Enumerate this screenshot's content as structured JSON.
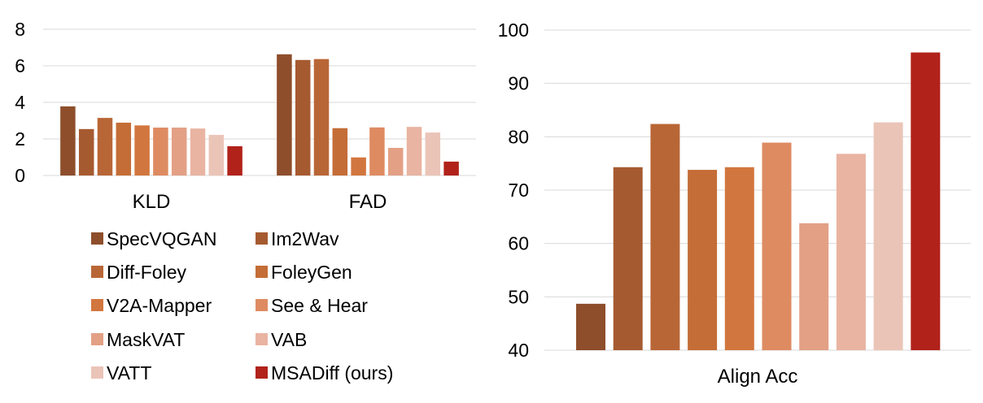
{
  "colors": [
    "#8e4e2b",
    "#a65a30",
    "#b96636",
    "#c46d37",
    "#d2763f",
    "#de8b62",
    "#e3a085",
    "#e9b4a2",
    "#ebc4b8",
    "#b1221a"
  ],
  "chart_data": [
    {
      "type": "bar",
      "categories": [
        "KLD",
        "FAD"
      ],
      "ylim": [
        0,
        8
      ],
      "yticks": [
        0,
        2,
        4,
        6,
        8
      ],
      "grid": true,
      "legend_position": "bottom",
      "series": [
        {
          "name": "SpecVQGAN",
          "values": [
            3.78,
            6.63
          ]
        },
        {
          "name": "Im2Wav",
          "values": [
            2.54,
            6.32
          ]
        },
        {
          "name": "Diff-Foley",
          "values": [
            3.15,
            6.37
          ]
        },
        {
          "name": "FoleyGen",
          "values": [
            2.89,
            2.59
          ]
        },
        {
          "name": "V2A-Mapper",
          "values": [
            2.74,
            0.99
          ]
        },
        {
          "name": "See & Hear",
          "values": [
            2.62,
            2.63
          ]
        },
        {
          "name": "MaskVAT",
          "values": [
            2.62,
            1.51
          ]
        },
        {
          "name": "VAB",
          "values": [
            2.57,
            2.66
          ]
        },
        {
          "name": "VATT",
          "values": [
            2.22,
            2.35
          ]
        },
        {
          "name": "MSADiff (ours)",
          "values": [
            1.6,
            0.76
          ]
        }
      ]
    },
    {
      "type": "bar",
      "categories": [
        "Align Acc"
      ],
      "ylim": [
        40,
        100
      ],
      "yticks": [
        40,
        50,
        60,
        70,
        80,
        90,
        100
      ],
      "grid": true,
      "series": [
        {
          "name": "SpecVQGAN",
          "values": [
            48.7
          ]
        },
        {
          "name": "Im2Wav",
          "values": [
            74.3
          ]
        },
        {
          "name": "Diff-Foley",
          "values": [
            82.4
          ]
        },
        {
          "name": "FoleyGen",
          "values": [
            73.8
          ]
        },
        {
          "name": "V2A-Mapper",
          "values": [
            74.3
          ]
        },
        {
          "name": "See & Hear",
          "values": [
            78.9
          ]
        },
        {
          "name": "MaskVAT",
          "values": [
            63.8
          ]
        },
        {
          "name": "VAB",
          "values": [
            76.8
          ]
        },
        {
          "name": "VATT",
          "values": [
            82.7
          ]
        },
        {
          "name": "MSADiff (ours)",
          "values": [
            95.8
          ]
        }
      ]
    }
  ]
}
